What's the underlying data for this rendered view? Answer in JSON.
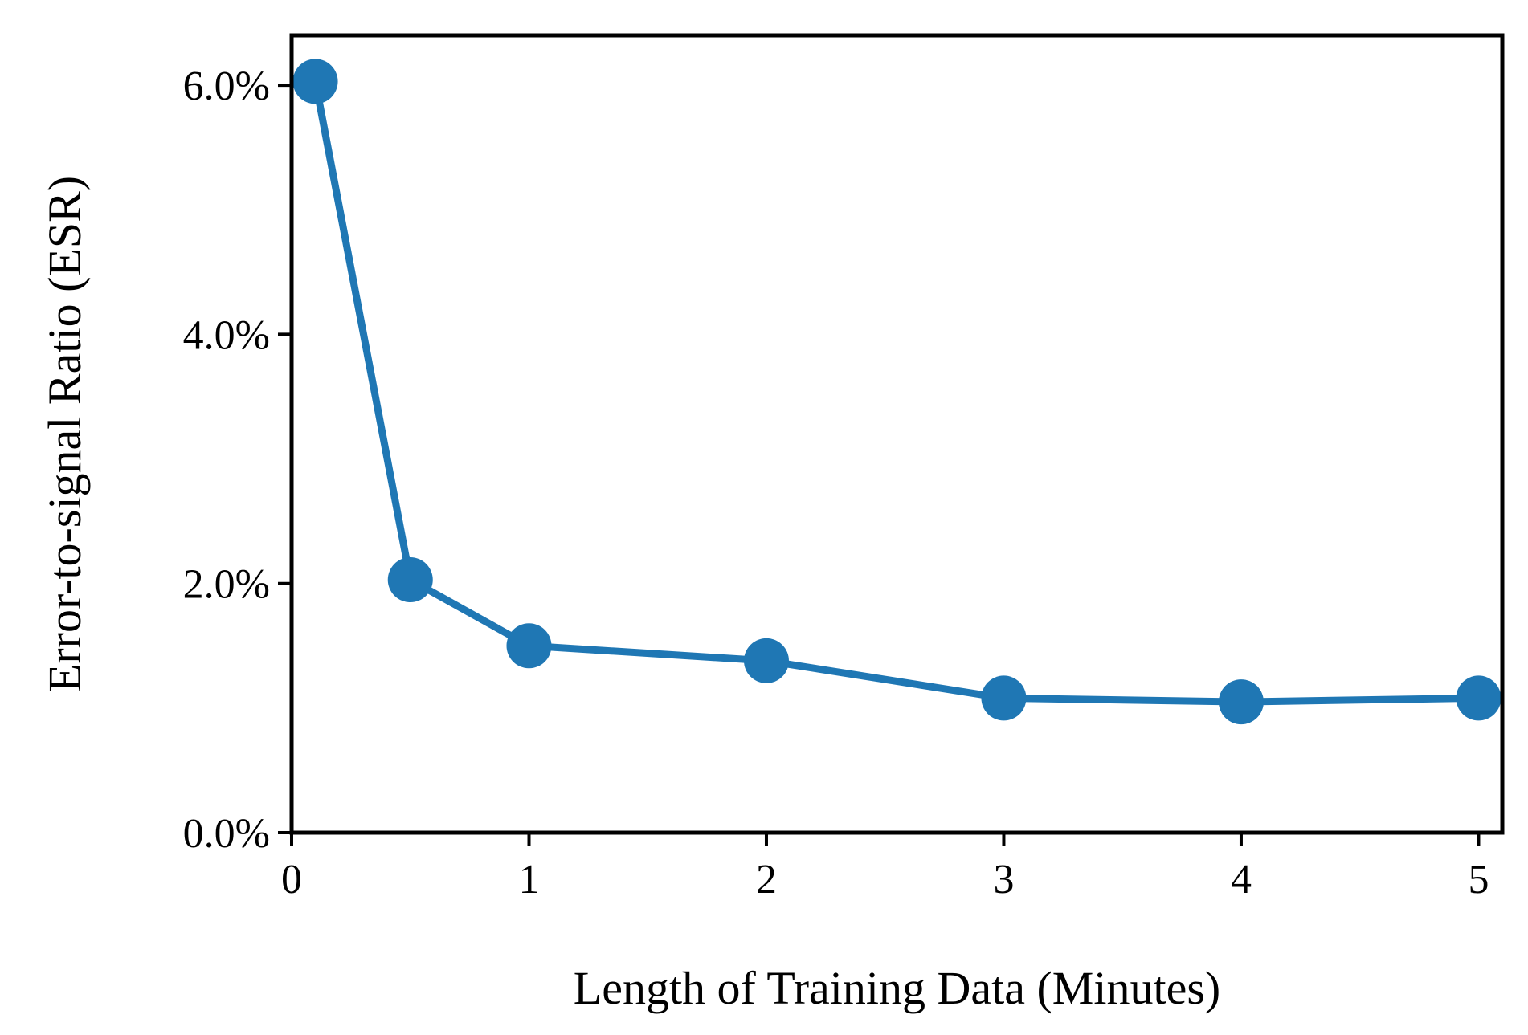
{
  "chart_data": {
    "type": "line",
    "xlabel": "Length of Training Data (Minutes)",
    "ylabel": "Error-to-signal Ratio (ESR)",
    "xlim": [
      0,
      5.1
    ],
    "ylim": [
      0,
      6.4
    ],
    "x_ticks": [
      0,
      1,
      2,
      3,
      4,
      5
    ],
    "x_tick_labels": [
      "0",
      "1",
      "2",
      "3",
      "4",
      "5"
    ],
    "y_ticks": [
      0,
      2,
      4,
      6
    ],
    "y_tick_labels": [
      "0.0%",
      "2.0%",
      "4.0%",
      "6.0%"
    ],
    "grid": false,
    "series": [
      {
        "color": "#1f77b4",
        "marker": "circle",
        "x": [
          0.1,
          0.5,
          1,
          2,
          3,
          4,
          5
        ],
        "y": [
          6.03,
          2.03,
          1.5,
          1.38,
          1.08,
          1.05,
          1.08
        ]
      }
    ]
  }
}
